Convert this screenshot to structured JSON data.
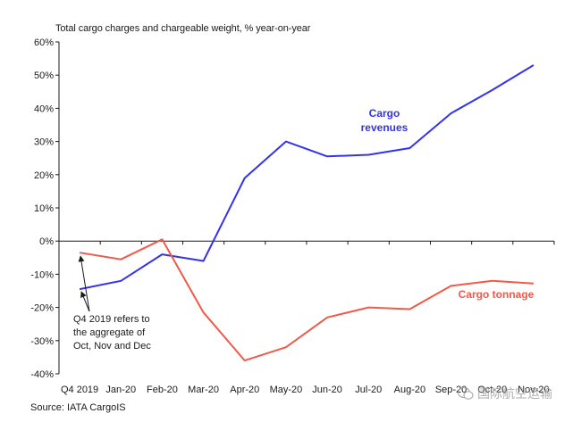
{
  "chart_data": {
    "type": "line",
    "title": "Total cargo charges and chargeable weight, % year-on-year",
    "categories": [
      "Q4 2019",
      "Jan-20",
      "Feb-20",
      "Mar-20",
      "Apr-20",
      "May-20",
      "Jun-20",
      "Jul-20",
      "Aug-20",
      "Sep-20",
      "Oct-20",
      "Nov-20"
    ],
    "y_tick_labels": [
      "60%",
      "50%",
      "40%",
      "30%",
      "20%",
      "10%",
      "0%",
      "-10%",
      "-20%",
      "-30%",
      "-40%"
    ],
    "ylim": [
      -40,
      60
    ],
    "grid": false,
    "series": [
      {
        "name": "Cargo revenues",
        "label_lines": [
          "Cargo",
          "revenues"
        ],
        "color": "#3333ee",
        "values": [
          -14.5,
          -12,
          -4,
          -6,
          19,
          30,
          25.5,
          26,
          28,
          38.5,
          45.5,
          53
        ]
      },
      {
        "name": "Cargo tonnage",
        "label_lines": [
          "Cargo tonnage"
        ],
        "color": "#f05a4a",
        "values": [
          -3.5,
          -5.5,
          0.5,
          -21.5,
          -36,
          -32,
          -23,
          -20,
          -20.5,
          -13.5,
          -12,
          -12.8
        ]
      }
    ],
    "annotation": [
      "Q4 2019 refers to",
      "the aggregate of",
      "Oct, Nov and Dec"
    ]
  },
  "source": "Source: IATA CargoIS",
  "watermark": "国际航空运输"
}
